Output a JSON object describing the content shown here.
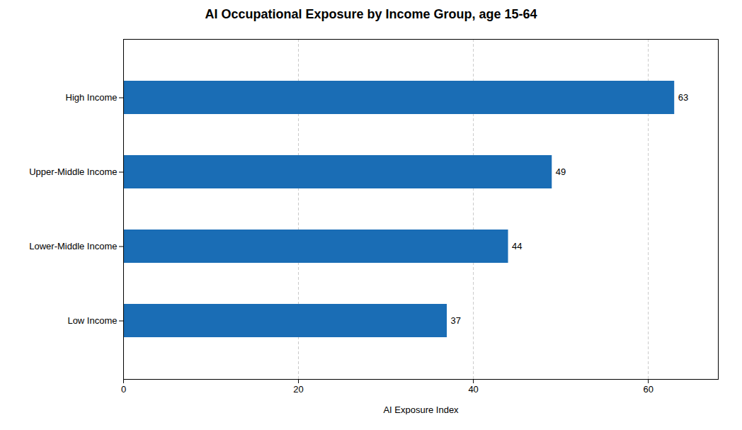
{
  "chart_data": {
    "type": "bar",
    "title": "AI Occupational Exposure by Income Group, age 15-64",
    "orientation": "horizontal",
    "categories": [
      "Low Income",
      "Lower-Middle Income",
      "Upper-Middle Income",
      "High Income"
    ],
    "values": [
      37,
      44,
      49,
      63
    ],
    "color": "#1A6DB5",
    "xlabel": "AI Exposure Index",
    "xlim": [
      0,
      68
    ],
    "xticks": [
      0,
      20,
      40,
      60
    ],
    "grid": true,
    "data_labels": true
  }
}
